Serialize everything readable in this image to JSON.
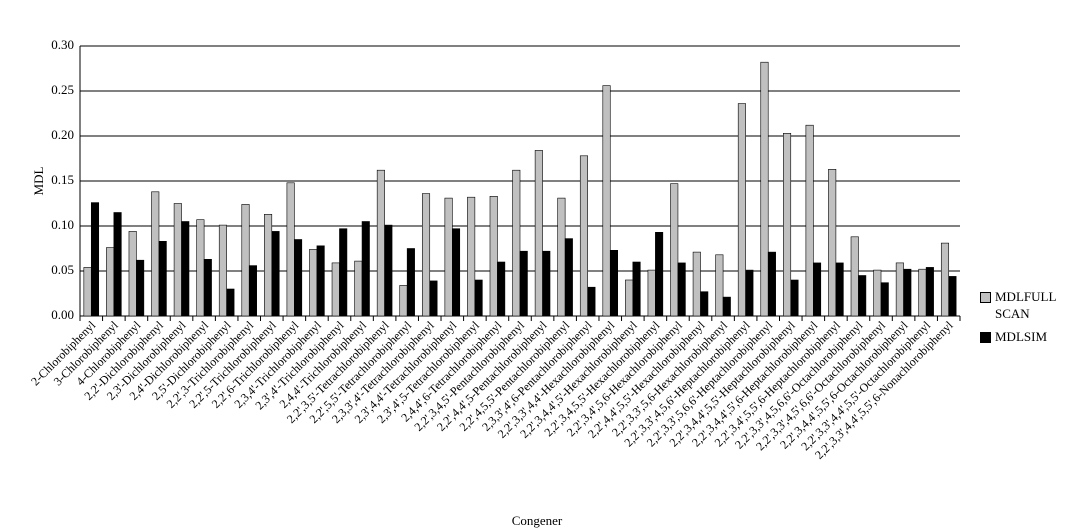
{
  "chart_data": {
    "type": "bar",
    "x_label": "Congener",
    "y_label": "MDL",
    "categories": [
      "2-Chlorobiphenyl",
      "3-Chlorobiphenyl",
      "4-Chlorobiphenyl",
      "2,2'-Dichlorobiphenyl",
      "2,3'-Dichlorobiphenyl",
      "2,4'-Dichlorobiphenyl",
      "2,5'-Dichlorobiphenyl",
      "2,2',3-Trichlorobiphenyl",
      "2,2',5-Trichlorobiphenyl",
      "2,2',6-Trichlorobiphenyl",
      "2,3,4'-Trichlorobiphenyl",
      "2,3',4'-Trichlorobiphenyl",
      "2,4,4'-Trichlorobiphenyl",
      "2,2',3,5'-Tetrachlorobiphenyl",
      "2,2',5,5'-Tetrachlorobiphenyl",
      "2,3,3',4'-Tetrachlorobiphenyl",
      "2,3',4,4'-Tetrachlorobiphenyl",
      "2,3',4',5-Tetrachlorobiphenyl",
      "2,4,4',6-Tetrachlorobiphenyl",
      "2,2',3,4,5'-Pentachlorobiphenyl",
      "2,2',4,4',5-Pentachlorobiphenyl",
      "2,2',4,5,5'-Pentachlorobiphenyl",
      "2,3,3',4',6-Pentachlorobiphenyl",
      "2,2',3,3',4,4'-Hexachlorobiphenyl",
      "2,2',3,4,4',5'-Hexachlorobiphenyl",
      "2,2',3,4,5,5'-Hexachlorobiphenyl",
      "2,2',3,4',5,6-Hexachlorobiphenyl",
      "2,2',4,4',5,5'-Hexachlorobiphenyl",
      "2,2',3,3',5,6-Hexachlorobiphenyl",
      "2,2',3,3',4,5,6'-Heptachlorobiphenyl",
      "2,2',3,3',5,6,6'-Heptachlorobiphenyl",
      "2,2',3,4,4',5,5'-Heptachlorobiphenyl",
      "2,2',3,4,4',5',6-Heptachlorobiphenyl",
      "2,2',3,4',5,5',6-Heptachlorobiphenyl",
      "2,2',3,3',4,5,6,6'-Octachlorobiphenyl",
      "2,2',3,3',4,5',6,6'-Octachlorobiphenyl",
      "2,2',3,4,4',5,5',6-Octachlorobiphenyl",
      "2,2',3,3',4,4',5,5'-Octachlorobiphenyl",
      "2,2',3,3',4,4',5,5',6-Nonachlorobiphenyl"
    ],
    "series": [
      {
        "name": "MDLFULL SCAN",
        "color": "#c0c0c0",
        "values": [
          0.054,
          0.076,
          0.094,
          0.138,
          0.125,
          0.107,
          0.101,
          0.124,
          0.113,
          0.148,
          0.074,
          0.059,
          0.061,
          0.162,
          0.034,
          0.136,
          0.131,
          0.132,
          0.133,
          0.162,
          0.184,
          0.131,
          0.178,
          0.256,
          0.04,
          0.051,
          0.147,
          0.071,
          0.068,
          0.236,
          0.282,
          0.203,
          0.212,
          0.163,
          0.088,
          0.051,
          0.059,
          0.052,
          0.081
        ]
      },
      {
        "name": "MDLSIM",
        "color": "#000000",
        "values": [
          0.126,
          0.115,
          0.062,
          0.083,
          0.105,
          0.063,
          0.03,
          0.056,
          0.094,
          0.085,
          0.078,
          0.097,
          0.105,
          0.101,
          0.075,
          0.039,
          0.097,
          0.04,
          0.06,
          0.072,
          0.072,
          0.086,
          0.032,
          0.073,
          0.06,
          0.093,
          0.059,
          0.027,
          0.021,
          0.051,
          0.071,
          0.04,
          0.059,
          0.059,
          0.045,
          0.037,
          0.052,
          0.054,
          0.044
        ]
      }
    ],
    "ylim": [
      0,
      0.3
    ],
    "yticks": [
      {
        "value": 0,
        "label": "0.00"
      },
      {
        "value": 0.05,
        "label": "0.05"
      },
      {
        "value": 0.1,
        "label": "0.10"
      },
      {
        "value": 0.15,
        "label": "0.15"
      },
      {
        "value": 0.2,
        "label": "0.20"
      },
      {
        "value": 0.25,
        "label": "0.25"
      },
      {
        "value": 0.3,
        "label": "0.30"
      }
    ],
    "grid": true
  }
}
